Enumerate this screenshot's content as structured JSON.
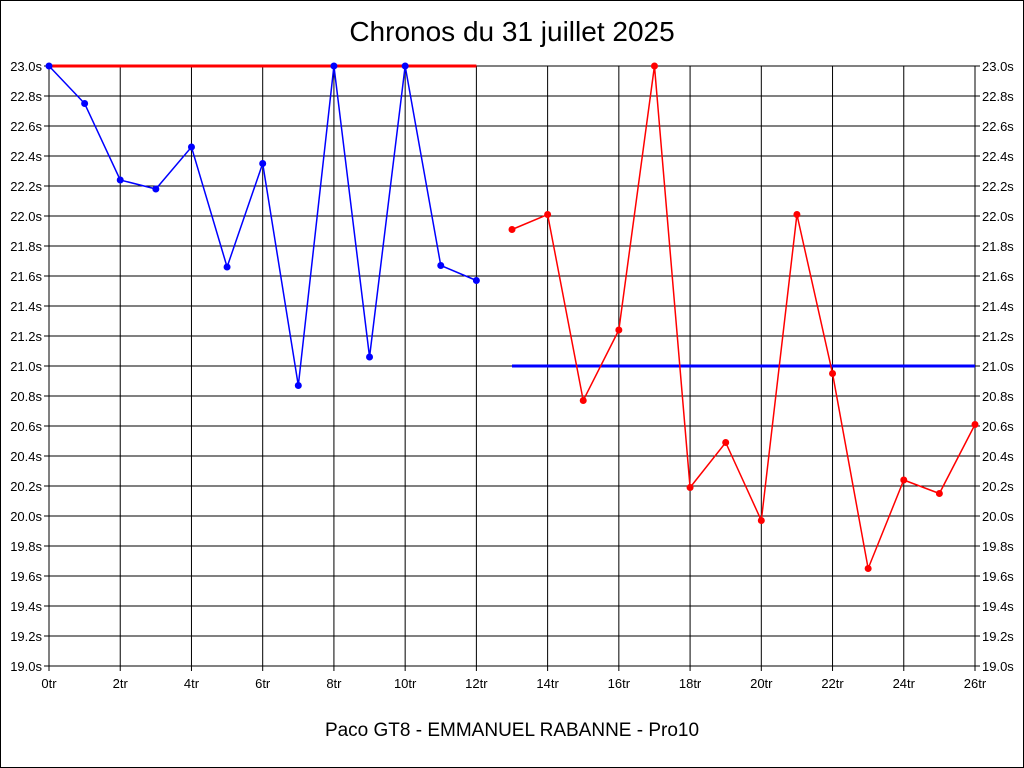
{
  "page": {
    "title": "Chronos du 31 juillet 2025",
    "footer": "Paco GT8 - EMMANUEL RABANNE - Pro10"
  },
  "chart_data": {
    "type": "line",
    "title": "Chronos du 31 juillet 2025",
    "xlabel": "",
    "ylabel": "",
    "x_unit": "tr",
    "y_unit": "s",
    "xlim": [
      0,
      26
    ],
    "ylim": [
      19.0,
      23.0
    ],
    "x_ticks": [
      0,
      2,
      4,
      6,
      8,
      10,
      12,
      14,
      16,
      18,
      20,
      22,
      24,
      26
    ],
    "x_tick_labels": [
      "0tr",
      "2tr",
      "4tr",
      "6tr",
      "8tr",
      "10tr",
      "12tr",
      "14tr",
      "16tr",
      "18tr",
      "20tr",
      "22tr",
      "24tr",
      "26tr"
    ],
    "y_ticks": [
      19.0,
      19.2,
      19.4,
      19.6,
      19.8,
      20.0,
      20.2,
      20.4,
      20.6,
      20.8,
      21.0,
      21.2,
      21.4,
      21.6,
      21.8,
      22.0,
      22.2,
      22.4,
      22.6,
      22.8,
      23.0
    ],
    "y_tick_labels": [
      "19.0s",
      "19.2s",
      "19.4s",
      "19.6s",
      "19.8s",
      "20.0s",
      "20.2s",
      "20.4s",
      "20.6s",
      "20.8s",
      "21.0s",
      "21.2s",
      "21.4s",
      "21.6s",
      "21.8s",
      "22.0s",
      "22.2s",
      "22.4s",
      "22.6s",
      "22.8s",
      "23.0s"
    ],
    "grid": true,
    "y_axis_labels_both_sides": true,
    "series": [
      {
        "color": "#0000ff",
        "x": [
          0,
          1,
          2,
          3,
          4,
          5,
          6,
          7,
          8,
          9,
          10,
          11,
          12
        ],
        "y": [
          23.0,
          22.75,
          22.24,
          22.18,
          22.46,
          21.66,
          22.35,
          20.87,
          23.0,
          21.06,
          23.0,
          21.67,
          21.57
        ]
      },
      {
        "color": "#ff0000",
        "x": [
          13,
          14,
          15,
          16,
          17,
          18,
          19,
          20,
          21,
          22,
          23,
          24,
          25,
          26
        ],
        "y": [
          21.91,
          22.01,
          20.77,
          21.24,
          23.0,
          20.19,
          20.49,
          19.97,
          22.01,
          20.95,
          19.65,
          20.24,
          20.15,
          20.61
        ]
      }
    ],
    "reference_lines": [
      {
        "color": "#ff0000",
        "y": 23.0,
        "x_from": 0,
        "x_to": 12
      },
      {
        "color": "#0000ff",
        "y": 21.0,
        "x_from": 13,
        "x_to": 26
      }
    ]
  }
}
